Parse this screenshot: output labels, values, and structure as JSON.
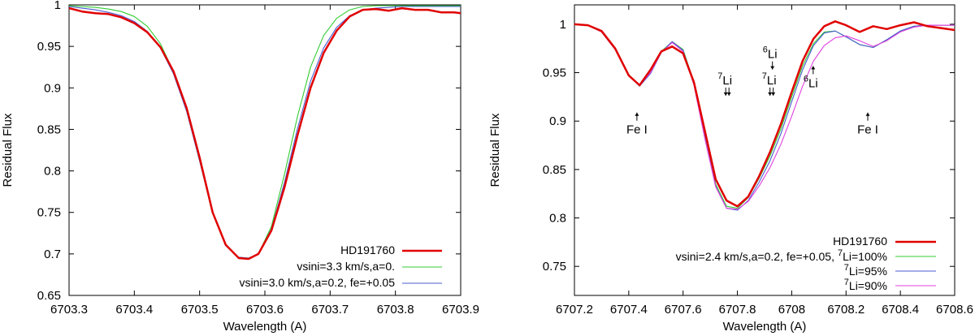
{
  "chart_data": [
    {
      "type": "line",
      "xlabel": "Wavelength (A)",
      "ylabel": "Residual Flux",
      "xlim": [
        6703.3,
        6703.9
      ],
      "ylim": [
        0.65,
        1.0
      ],
      "xticks": [
        "6703.3",
        "6703.4",
        "6703.5",
        "6703.6",
        "6703.7",
        "6703.8",
        "6703.9"
      ],
      "yticks": [
        "0.65",
        "0.7",
        "0.75",
        "0.8",
        "0.85",
        "0.9",
        "0.95",
        "1"
      ],
      "legend_position": "bottom-right",
      "series": [
        {
          "name": "HD191760",
          "color": "#e00000",
          "x": [
            6703.3,
            6703.32,
            6703.34,
            6703.36,
            6703.38,
            6703.4,
            6703.42,
            6703.44,
            6703.46,
            6703.48,
            6703.5,
            6703.52,
            6703.54,
            6703.56,
            6703.575,
            6703.59,
            6703.61,
            6703.63,
            6703.65,
            6703.67,
            6703.69,
            6703.71,
            6703.73,
            6703.75,
            6703.77,
            6703.79,
            6703.81,
            6703.83,
            6703.85,
            6703.87,
            6703.89,
            6703.9
          ],
          "y": [
            0.996,
            0.992,
            0.99,
            0.989,
            0.985,
            0.978,
            0.967,
            0.949,
            0.92,
            0.876,
            0.816,
            0.75,
            0.711,
            0.695,
            0.694,
            0.7,
            0.728,
            0.78,
            0.843,
            0.9,
            0.942,
            0.969,
            0.986,
            0.994,
            0.995,
            0.993,
            0.996,
            0.994,
            0.994,
            0.991,
            0.991,
            0.99
          ]
        },
        {
          "name": "vsini=3.3 km/s,a=0.",
          "color": "#33cc33",
          "x": [
            6703.3,
            6703.32,
            6703.34,
            6703.36,
            6703.38,
            6703.4,
            6703.42,
            6703.44,
            6703.46,
            6703.48,
            6703.5,
            6703.52,
            6703.54,
            6703.56,
            6703.575,
            6703.59,
            6703.61,
            6703.63,
            6703.65,
            6703.67,
            6703.69,
            6703.71,
            6703.73,
            6703.75,
            6703.77,
            6703.79,
            6703.81,
            6703.83,
            6703.85,
            6703.87,
            6703.89,
            6703.9
          ],
          "y": [
            0.999,
            0.998,
            0.997,
            0.995,
            0.992,
            0.986,
            0.974,
            0.953,
            0.92,
            0.873,
            0.812,
            0.749,
            0.71,
            0.696,
            0.695,
            0.7,
            0.733,
            0.796,
            0.866,
            0.925,
            0.963,
            0.984,
            0.994,
            0.998,
            0.999,
            0.999,
            0.999,
            0.999,
            0.999,
            0.999,
            0.999,
            0.999
          ]
        },
        {
          "name": "vsini=3.0 km/s,a=0.2, fe=+0.05",
          "color": "#4a5cd0",
          "x": [
            6703.3,
            6703.32,
            6703.34,
            6703.36,
            6703.38,
            6703.4,
            6703.42,
            6703.44,
            6703.46,
            6703.48,
            6703.5,
            6703.52,
            6703.54,
            6703.56,
            6703.575,
            6703.59,
            6703.61,
            6703.63,
            6703.65,
            6703.67,
            6703.69,
            6703.71,
            6703.73,
            6703.75,
            6703.77,
            6703.79,
            6703.81,
            6703.83,
            6703.85,
            6703.87,
            6703.89,
            6703.9
          ],
          "y": [
            0.998,
            0.996,
            0.994,
            0.991,
            0.987,
            0.98,
            0.968,
            0.948,
            0.917,
            0.872,
            0.812,
            0.749,
            0.71,
            0.696,
            0.695,
            0.7,
            0.73,
            0.786,
            0.851,
            0.908,
            0.948,
            0.973,
            0.987,
            0.994,
            0.996,
            0.997,
            0.998,
            0.998,
            0.998,
            0.998,
            0.998,
            0.998
          ]
        }
      ]
    },
    {
      "type": "line",
      "xlabel": "Wavelength (A)",
      "ylabel": "Residual Flux",
      "xlim": [
        6707.2,
        6708.6
      ],
      "ylim": [
        0.72,
        1.02
      ],
      "xticks": [
        "6707.2",
        "6707.4",
        "6707.6",
        "6707.8",
        "6708",
        "6708.2",
        "6708.4",
        "6708.6"
      ],
      "yticks": [
        "0.75",
        "0.8",
        "0.85",
        "0.9",
        "0.95",
        "1"
      ],
      "legend_position": "bottom-right",
      "legend_prefix": "vsini=2.4 km/s,a=0.2, fe=+0.05,",
      "annotations": [
        {
          "label": "Fe I",
          "x": 6707.43,
          "y": 0.887,
          "arrow": "up"
        },
        {
          "label": "Fe I",
          "x": 6708.28,
          "y": 0.887,
          "arrow": "up"
        },
        {
          "sup": "7",
          "label": "Li",
          "x": 6707.754,
          "y": 0.938,
          "arrow": "double-down"
        },
        {
          "sup": "7",
          "label": "Li",
          "x": 6707.917,
          "y": 0.938,
          "arrow": "double-down"
        },
        {
          "sup": "6",
          "label": "Li",
          "x": 6707.92,
          "y": 0.965,
          "arrow": "down"
        },
        {
          "sup": "6",
          "label": "Li",
          "x": 6708.07,
          "y": 0.935,
          "arrow": "up"
        }
      ],
      "series": [
        {
          "name": "HD191760",
          "color": "#e00000",
          "x": [
            6707.2,
            6707.25,
            6707.3,
            6707.35,
            6707.4,
            6707.44,
            6707.48,
            6707.52,
            6707.56,
            6707.6,
            6707.64,
            6707.68,
            6707.72,
            6707.76,
            6707.8,
            6707.84,
            6707.88,
            6707.92,
            6707.96,
            6708.0,
            6708.04,
            6708.08,
            6708.12,
            6708.16,
            6708.2,
            6708.25,
            6708.3,
            6708.35,
            6708.4,
            6708.45,
            6708.5,
            6708.55,
            6708.6
          ],
          "y": [
            1.0,
            0.999,
            0.993,
            0.975,
            0.947,
            0.937,
            0.953,
            0.972,
            0.977,
            0.97,
            0.94,
            0.89,
            0.84,
            0.818,
            0.812,
            0.822,
            0.843,
            0.868,
            0.897,
            0.93,
            0.962,
            0.985,
            0.998,
            1.003,
            0.999,
            0.992,
            0.998,
            0.995,
            0.999,
            1.002,
            0.998,
            0.996,
            0.994
          ]
        },
        {
          "name": "Li=100%",
          "sup": "7",
          "color": "#33cc33",
          "x": [
            6707.2,
            6707.25,
            6707.3,
            6707.35,
            6707.4,
            6707.44,
            6707.48,
            6707.52,
            6707.56,
            6707.6,
            6707.64,
            6707.68,
            6707.72,
            6707.76,
            6707.8,
            6707.84,
            6707.88,
            6707.92,
            6707.96,
            6708.0,
            6708.04,
            6708.08,
            6708.12,
            6708.16,
            6708.2,
            6708.25,
            6708.3,
            6708.35,
            6708.4,
            6708.45,
            6708.5,
            6708.55,
            6708.6
          ],
          "y": [
            1.0,
            0.999,
            0.992,
            0.974,
            0.948,
            0.937,
            0.95,
            0.972,
            0.982,
            0.974,
            0.94,
            0.885,
            0.835,
            0.812,
            0.81,
            0.821,
            0.841,
            0.864,
            0.892,
            0.925,
            0.957,
            0.98,
            0.992,
            0.993,
            0.987,
            0.979,
            0.976,
            0.984,
            0.993,
            0.998,
            0.999,
            0.999,
            0.999
          ]
        },
        {
          "name": "Li=95%",
          "sup": "7",
          "color": "#4a5cd0",
          "x": [
            6707.2,
            6707.25,
            6707.3,
            6707.35,
            6707.4,
            6707.44,
            6707.48,
            6707.52,
            6707.56,
            6707.6,
            6707.64,
            6707.68,
            6707.72,
            6707.76,
            6707.8,
            6707.84,
            6707.88,
            6707.92,
            6707.96,
            6708.0,
            6708.04,
            6708.08,
            6708.12,
            6708.16,
            6708.2,
            6708.25,
            6708.3,
            6708.35,
            6708.4,
            6708.45,
            6708.5,
            6708.55,
            6708.6
          ],
          "y": [
            1.0,
            0.999,
            0.992,
            0.974,
            0.947,
            0.936,
            0.949,
            0.971,
            0.982,
            0.973,
            0.938,
            0.883,
            0.833,
            0.81,
            0.808,
            0.818,
            0.837,
            0.859,
            0.887,
            0.92,
            0.953,
            0.978,
            0.991,
            0.993,
            0.987,
            0.979,
            0.976,
            0.984,
            0.993,
            0.998,
            0.999,
            0.999,
            0.999
          ]
        },
        {
          "name": "Li=90%",
          "sup": "7",
          "color": "#e040e0",
          "x": [
            6707.2,
            6707.25,
            6707.3,
            6707.35,
            6707.4,
            6707.44,
            6707.48,
            6707.52,
            6707.56,
            6707.6,
            6707.64,
            6707.68,
            6707.72,
            6707.76,
            6707.8,
            6707.84,
            6707.88,
            6707.92,
            6707.96,
            6708.0,
            6708.04,
            6708.08,
            6708.12,
            6708.16,
            6708.2,
            6708.25,
            6708.3,
            6708.35,
            6708.4,
            6708.45,
            6708.5,
            6708.55,
            6708.6
          ],
          "y": [
            1.0,
            0.999,
            0.992,
            0.974,
            0.947,
            0.937,
            0.95,
            0.971,
            0.981,
            0.972,
            0.937,
            0.882,
            0.832,
            0.81,
            0.809,
            0.817,
            0.833,
            0.852,
            0.876,
            0.905,
            0.936,
            0.962,
            0.978,
            0.986,
            0.988,
            0.983,
            0.977,
            0.983,
            0.992,
            0.997,
            0.999,
            0.999,
            0.999
          ]
        }
      ]
    }
  ]
}
